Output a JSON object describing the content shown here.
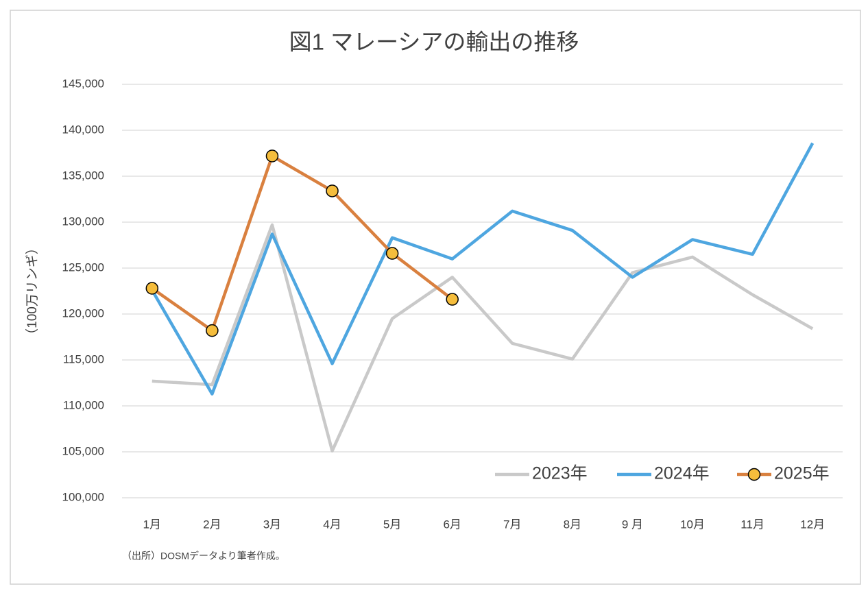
{
  "chart_data": {
    "type": "line",
    "title": "図1 マレーシアの輸出の推移",
    "y_label": "（100万リンギ）",
    "source": "（出所）DOSMデータより筆者作成。",
    "categories": [
      "1月",
      "2月",
      "3月",
      "4月",
      "5月",
      "6月",
      "7月",
      "8月",
      "9 月",
      "10月",
      "11月",
      "12月"
    ],
    "series": [
      {
        "name": "2023年",
        "color": "#c9c9c9",
        "marker": false,
        "values": [
          112700,
          112300,
          129700,
          105100,
          119500,
          124000,
          116800,
          115100,
          124500,
          126200,
          122100,
          118400
        ]
      },
      {
        "name": "2024年",
        "color": "#4ea6e0",
        "marker": false,
        "values": [
          122600,
          111300,
          128700,
          114600,
          128300,
          126000,
          131200,
          129100,
          124000,
          128100,
          126500,
          138600
        ]
      },
      {
        "name": "2025年",
        "color": "#d9803f",
        "marker": true,
        "marker_color": "#f5bd3c",
        "values": [
          122800,
          118200,
          137200,
          133400,
          126600,
          121600,
          null,
          null,
          null,
          null,
          null,
          null
        ]
      }
    ],
    "ylim": [
      100000,
      145000
    ],
    "yticks": [
      {
        "value": 100000,
        "label": "100,000"
      },
      {
        "value": 105000,
        "label": "105,000"
      },
      {
        "value": 110000,
        "label": "110,000"
      },
      {
        "value": 115000,
        "label": "115,000"
      },
      {
        "value": 120000,
        "label": "120,000"
      },
      {
        "value": 125000,
        "label": "125,000"
      },
      {
        "value": 130000,
        "label": "130,000"
      },
      {
        "value": 135000,
        "label": "135,000"
      },
      {
        "value": 140000,
        "label": "140,000"
      },
      {
        "value": 145000,
        "label": "145,000"
      }
    ],
    "grid": true,
    "legend": "bottom-right"
  }
}
